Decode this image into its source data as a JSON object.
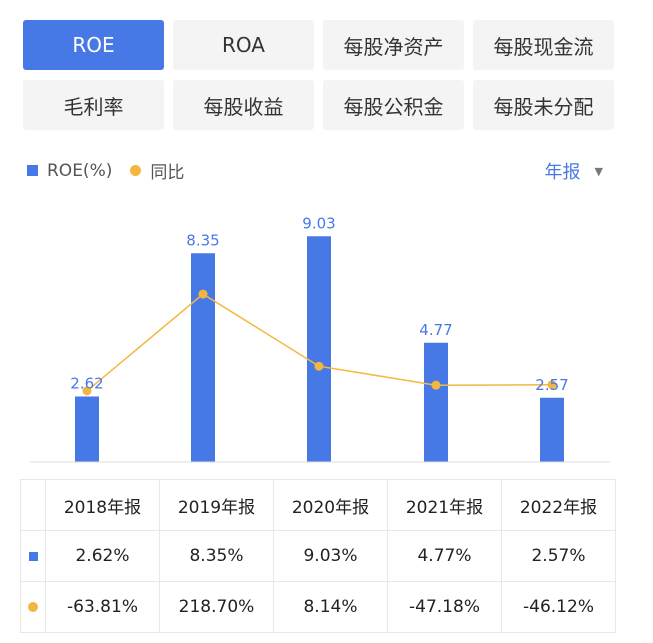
{
  "tabs": [
    {
      "label": "ROE",
      "active": true
    },
    {
      "label": "ROA",
      "active": false
    },
    {
      "label": "每股净资产",
      "active": false
    },
    {
      "label": "每股现金流",
      "active": false
    },
    {
      "label": "毛利率",
      "active": false
    },
    {
      "label": "每股收益",
      "active": false
    },
    {
      "label": "每股公积金",
      "active": false
    },
    {
      "label": "每股未分配",
      "active": false
    }
  ],
  "legend": {
    "bar_label": "ROE(%)",
    "line_label": "同比"
  },
  "period_selector": {
    "label": "年报"
  },
  "colors": {
    "accent": "#4779e6",
    "line": "#f3b73f",
    "negative": "#3aa36a",
    "positive": "#e0484f"
  },
  "chart_data": {
    "type": "bar",
    "categories": [
      "2018年报",
      "2019年报",
      "2020年报",
      "2021年报",
      "2022年报"
    ],
    "series": [
      {
        "name": "ROE(%)",
        "type": "bar",
        "values": [
          2.62,
          8.35,
          9.03,
          4.77,
          2.57
        ],
        "labels": [
          "2.62",
          "8.35",
          "9.03",
          "4.77",
          "2.57"
        ]
      },
      {
        "name": "同比",
        "type": "line",
        "values": [
          -63.81,
          218.7,
          8.14,
          -47.18,
          -46.12
        ]
      }
    ],
    "grid": false
  },
  "table": {
    "headers": [
      "2018年报",
      "2019年报",
      "2020年报",
      "2021年报",
      "2022年报"
    ],
    "roe_values": [
      "2.62%",
      "8.35%",
      "9.03%",
      "4.77%",
      "2.57%"
    ],
    "yoy_values": [
      "-63.81%",
      "218.70%",
      "8.14%",
      "-47.18%",
      "-46.12%"
    ]
  }
}
